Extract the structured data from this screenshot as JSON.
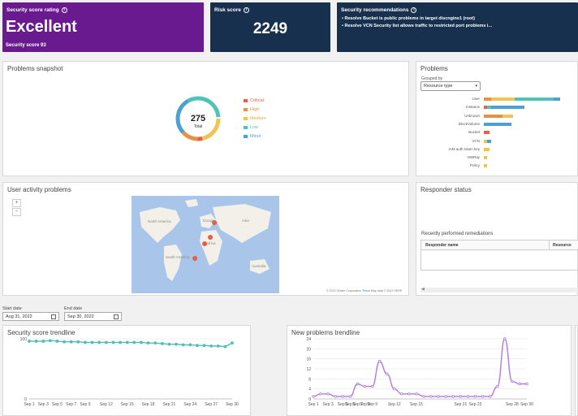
{
  "security_score": {
    "title": "Security score rating",
    "rating": "Excellent",
    "score_text": "Security score 93",
    "bg_color": "#6a1a8f"
  },
  "risk_score": {
    "title": "Risk score",
    "value": "2249",
    "bg_color": "#16304e"
  },
  "recommendations": {
    "title": "Security recommendations",
    "items": [
      "Resolve Bucket is public problems in target discngine1 (root)",
      "Resolve VCN Security list allows traffic to restricted port problems i..."
    ]
  },
  "problems_snapshot": {
    "title": "Problems snapshot",
    "total": "275",
    "total_label": "Total",
    "legend": [
      {
        "label": "Critical",
        "color": "#e2614b"
      },
      {
        "label": "High",
        "color": "#e59245"
      },
      {
        "label": "Medium",
        "color": "#f1c451"
      },
      {
        "label": "Low",
        "color": "#4fc3b7"
      },
      {
        "label": "Minor",
        "color": "#4d9fd6"
      }
    ]
  },
  "problems": {
    "title": "Problems",
    "grouped_by_label": "Grouped by",
    "group_select": "Resource type",
    "rows": [
      {
        "label": "User",
        "segments": [
          {
            "v": 5,
            "c": "#e59245"
          },
          {
            "v": 16,
            "c": "#f1c451"
          },
          {
            "v": 27,
            "c": "#4fc3b7"
          },
          {
            "v": 4,
            "c": "#4d9fd6"
          }
        ]
      },
      {
        "label": "Instance",
        "segments": [
          {
            "v": 2,
            "c": "#e2614b"
          },
          {
            "v": 3,
            "c": "#4fc3b7"
          },
          {
            "v": 23,
            "c": "#4d9fd6"
          }
        ]
      },
      {
        "label": "Unknown",
        "segments": [
          {
            "v": 13,
            "c": "#e59245"
          },
          {
            "v": 7,
            "c": "#f1c451"
          }
        ]
      },
      {
        "label": "BlockVolume",
        "segments": [
          {
            "v": 19,
            "c": "#4d9fd6"
          }
        ]
      },
      {
        "label": "Bucket",
        "segments": [
          {
            "v": 4,
            "c": "#e2614b"
          }
        ]
      },
      {
        "label": "VCN",
        "segments": [
          {
            "v": 2,
            "c": "#f1c451"
          },
          {
            "v": 3,
            "c": "#4d9fd6"
          }
        ]
      },
      {
        "label": "IAM auth token key",
        "segments": [
          {
            "v": 4,
            "c": "#f1c451"
          }
        ]
      },
      {
        "label": "NWRay",
        "segments": [
          {
            "v": 2,
            "c": "#f1c451"
          }
        ]
      },
      {
        "label": "Policy",
        "segments": [
          {
            "v": 2,
            "c": "#f1c451"
          }
        ]
      }
    ]
  },
  "user_activity": {
    "title": "User activity problems",
    "zoom_in": "+",
    "zoom_out": "−",
    "attribution_1": "© 2022 Oracle Corporation",
    "attribution_terms": "Terms",
    "attribution_2": "Map data © 2021 HERE",
    "map_labels": [
      "North America",
      "South America",
      "Europe",
      "Africa",
      "Asia",
      "Australia"
    ]
  },
  "responder_status": {
    "title": "Responder status",
    "remediations_title": "Recently performed remediations",
    "col_responder": "Responder name",
    "col_resource": "Resource"
  },
  "dates": {
    "start_label": "Start date",
    "start_value": "Aug 31, 2022",
    "end_label": "End date",
    "end_value": "Sep 30, 2022"
  },
  "chart_data": [
    {
      "type": "line",
      "title": "Security score trendline",
      "color": "#4fbfb7",
      "x": [
        "Sep 1",
        "Sep 2",
        "Sep 3",
        "Sep 4",
        "Sep 5",
        "Sep 6",
        "Sep 7",
        "Sep 8",
        "Sep 9",
        "Sep 10",
        "Sep 11",
        "Sep 12",
        "Sep 13",
        "Sep 14",
        "Sep 15",
        "Sep 16",
        "Sep 17",
        "Sep 18",
        "Sep 19",
        "Sep 20",
        "Sep 21",
        "Sep 22",
        "Sep 23",
        "Sep 24",
        "Sep 25",
        "Sep 26",
        "Sep 27",
        "Sep 28",
        "Sep 29",
        "Sep 30"
      ],
      "values": [
        96,
        96,
        96,
        97,
        96,
        95,
        95,
        95,
        94,
        94,
        94,
        94,
        94,
        94,
        94,
        94,
        94,
        93,
        93,
        92,
        91,
        91,
        90,
        90,
        89,
        89,
        88,
        88,
        87,
        93
      ],
      "xticks": [
        "Sep 1",
        "Sep 3",
        "Sep 5",
        "Sep 7",
        "Sep 9",
        "Sep 12",
        "Sep 15",
        "Sep 18",
        "Sep 21",
        "Sep 24",
        "Sep 27",
        "Sep 30"
      ],
      "yticks": [
        0,
        100
      ],
      "ylim": [
        0,
        100
      ]
    },
    {
      "type": "line",
      "title": "New problems trendline",
      "color": "#b07ce0",
      "x": [
        "Sep 1",
        "Sep 2",
        "Sep 3",
        "Sep 4",
        "Sep 5",
        "Sep 6",
        "Sep 7",
        "Sep 8",
        "Sep 9",
        "Sep 10",
        "Sep 11",
        "Sep 12",
        "Sep 13",
        "Sep 14",
        "Sep 15",
        "Sep 16",
        "Sep 17",
        "Sep 18",
        "Sep 19",
        "Sep 20",
        "Sep 21",
        "Sep 22",
        "Sep 23",
        "Sep 24",
        "Sep 25",
        "Sep 26",
        "Sep 27",
        "Sep 28",
        "Sep 29",
        "Sep 30"
      ],
      "values": [
        1,
        2,
        2,
        1,
        1,
        1,
        6,
        5,
        5,
        15,
        10,
        4,
        2,
        2,
        2,
        1,
        1,
        1,
        1,
        1,
        1,
        1,
        1,
        1,
        1,
        5,
        24,
        7,
        6,
        6
      ],
      "xticks": [
        "Sep 1",
        "Sep 3",
        "Sep 5",
        "Sep 7",
        "Sep 9",
        "Sep 12",
        "Sep 15",
        "Sep 18",
        "Sep 21",
        "Sep 24",
        "Sep 27",
        "Sep 30"
      ],
      "xticks_shown": [
        "Sep 1",
        "Sep 3",
        "Sep 5",
        "Sep 6",
        "Sep 7",
        "Sep 8",
        "Sep 9",
        "Sep 12",
        "Sep 15",
        "Sep 21",
        "Sep 23",
        "Sep 28",
        "Sep 30"
      ],
      "yticks": [
        0,
        4,
        8,
        12,
        16,
        20,
        24
      ],
      "ylim": [
        0,
        24
      ]
    }
  ]
}
